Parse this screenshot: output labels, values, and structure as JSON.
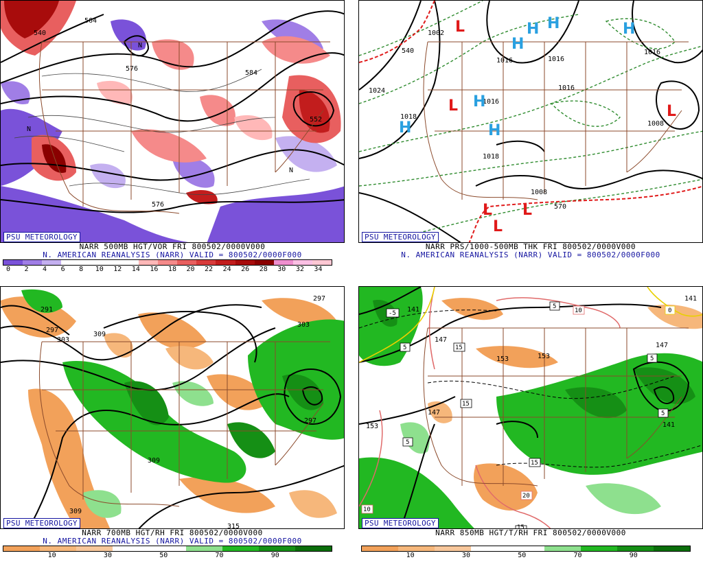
{
  "badge": "PSU METEOROLOGY",
  "panels": [
    {
      "caption1": "NARR 500MB HGT/VOR FRI 800502/0000V000",
      "caption2": "N. AMERICAN REANALYSIS (NARR) VALID = 800502/0000F000",
      "colorbar": {
        "colors": [
          "#7a52d9",
          "#a07ee6",
          "#c4b0f0",
          "#ffffff",
          "#ffffff",
          "#ffffff",
          "#ffffff",
          "#ffb8b8",
          "#f58a8a",
          "#e85f5f",
          "#d83b3b",
          "#c21d1d",
          "#a80c0c",
          "#8a0000",
          "#ef8fcf",
          "#fbc0e4",
          "#ffc8d4"
        ],
        "labels": [
          "0",
          "2",
          "4",
          "6",
          "8",
          "10",
          "12",
          "14",
          "16",
          "18",
          "20",
          "22",
          "24",
          "26",
          "28",
          "30",
          "32",
          "34"
        ]
      },
      "contour_labels": [
        "540",
        "564",
        "576",
        "584",
        "576",
        "552",
        "N",
        "N",
        "N"
      ]
    },
    {
      "caption1": "NARR PRS/1000-500MB THK FRI 800502/0000V000",
      "caption2": "N. AMERICAN REANALYSIS (NARR) VALID = 800502/0000F000",
      "contour_labels": [
        "1002",
        "1016",
        "1016",
        "1024",
        "1018",
        "1016",
        "1016",
        "1018",
        "1008",
        "1008",
        "1016",
        "570",
        "540"
      ],
      "pressure_centers": [
        "L",
        "L",
        "L",
        "L",
        "L",
        "L",
        "H",
        "H",
        "H",
        "H",
        "H",
        "H",
        "H"
      ]
    },
    {
      "caption1": "NARR 700MB HGT/RH FRI 800502/0000V000",
      "caption2": "N. AMERICAN REANALYSIS (NARR) VALID = 800502/0000F000",
      "colorbar": {
        "colors": [
          "#f2a15a",
          "#f6b77b",
          "#f8c79b",
          "#ffffff",
          "#ffffff",
          "#8ee08e",
          "#22b822",
          "#158f15",
          "#0b6e0b"
        ],
        "labels": [
          "10",
          "30",
          "50",
          "70",
          "90"
        ]
      },
      "contour_labels": [
        "291",
        "297",
        "303",
        "309",
        "303",
        "297",
        "309",
        "309",
        "315",
        "297"
      ]
    },
    {
      "caption1": "NARR 850MB HGT/T/RH FRI 800502/0000V000",
      "caption2": "",
      "colorbar": {
        "colors": [
          "#f2a15a",
          "#f6b77b",
          "#f8c79b",
          "#ffffff",
          "#ffffff",
          "#8ee08e",
          "#22b822",
          "#158f15",
          "#0b6e0b"
        ],
        "labels": [
          "10",
          "30",
          "50",
          "70",
          "90"
        ]
      },
      "contour_labels": [
        "141",
        "147",
        "153",
        "153",
        "147",
        "141",
        "153",
        "147",
        "141"
      ],
      "temp_boxes": [
        "-5",
        "5",
        "0",
        "5",
        "15",
        "15",
        "5",
        "15",
        "5",
        "5",
        "10",
        "20",
        "10",
        "15"
      ]
    }
  ]
}
